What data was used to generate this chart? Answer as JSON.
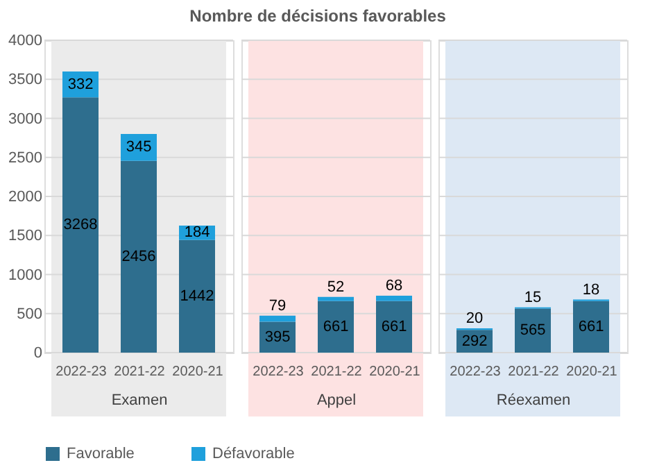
{
  "chart_data": [
    {
      "type": "bar",
      "title": "Nombre de décisions favorables",
      "xlabel": "Examen",
      "stacked": true,
      "data_labels": true,
      "categories": [
        "2022-23",
        "2021-22",
        "2020-21"
      ],
      "series": [
        {
          "name": "Favorable",
          "color": "#2e6e8e",
          "values": [
            3268,
            2456,
            1442
          ]
        },
        {
          "name": "Défavorable",
          "color": "#1fa0dc",
          "values": [
            332,
            345,
            184
          ]
        }
      ],
      "bands": [
        {
          "axis": "x",
          "from": "2022-23",
          "to": "2020-21",
          "color": "#ebebeb"
        }
      ],
      "ylim": [
        0,
        4000
      ],
      "yticks": [
        0,
        500,
        1000,
        1500,
        2000,
        2500,
        3000,
        3500,
        4000
      ],
      "grid": "y",
      "legend": "bottom"
    },
    {
      "type": "bar",
      "xlabel": "Appel",
      "stacked": true,
      "data_labels": true,
      "categories": [
        "2022-23",
        "2021-22",
        "2020-21"
      ],
      "series": [
        {
          "name": "Favorable",
          "color": "#2e6e8e",
          "values": [
            395,
            661,
            661
          ]
        },
        {
          "name": "Défavorable",
          "color": "#1fa0dc",
          "values": [
            79,
            52,
            68
          ]
        }
      ],
      "bands": [
        {
          "axis": "x",
          "from": "2022-23",
          "to": "2020-21",
          "color": "#fde2e2"
        }
      ],
      "ylim": [
        0,
        4000
      ],
      "yticks": [
        0,
        500,
        1000,
        1500,
        2000,
        2500,
        3000,
        3500,
        4000
      ],
      "grid": "y",
      "tick_labels": "x"
    },
    {
      "type": "bar",
      "xlabel": "Réexamen",
      "stacked": true,
      "data_labels": true,
      "categories": [
        "2022-23",
        "2021-22",
        "2020-21"
      ],
      "series": [
        {
          "name": "Favorable",
          "color": "#2e6e8e",
          "values": [
            292,
            565,
            661
          ]
        },
        {
          "name": "Défavorable",
          "color": "#1fa0dc",
          "values": [
            20,
            15,
            18
          ]
        }
      ],
      "bands": [
        {
          "axis": "x",
          "from": "2022-23",
          "to": "2020-21",
          "color": "#dde8f4"
        }
      ],
      "ylim": [
        0,
        4000
      ],
      "yticks": [
        0,
        500,
        1000,
        1500,
        2000,
        2500,
        3000,
        3500,
        4000
      ],
      "grid": "y",
      "tick_labels": "x"
    }
  ]
}
